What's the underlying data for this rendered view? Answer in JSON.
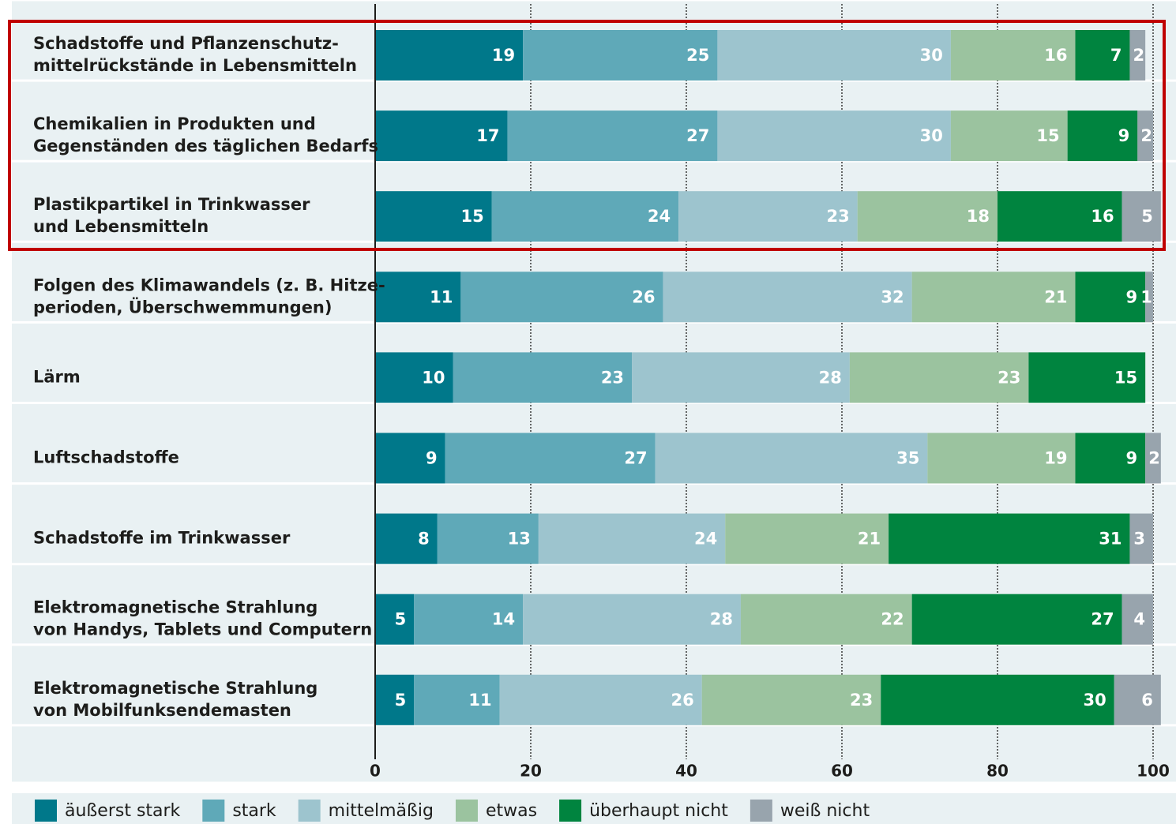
{
  "chart_data": {
    "type": "stacked-bar-horizontal",
    "categories": [
      [
        "Schadstoffe und Pflanzenschutz-",
        "mittelrückstände in Lebensmitteln"
      ],
      [
        "Chemikalien in Produkten und",
        "Gegenständen des täglichen Bedarfs"
      ],
      [
        "Plastikpartikel in Trinkwasser",
        "und Lebensmitteln"
      ],
      [
        "Folgen des Klimawandels (z. B. Hitze-",
        "perioden, Überschwemmungen)"
      ],
      [
        "Lärm"
      ],
      [
        "Luftschadstoffe"
      ],
      [
        "Schadstoffe im Trinkwasser"
      ],
      [
        "Elektromagnetische Strahlung",
        "von Handys, Tablets und Computern"
      ],
      [
        "Elektromagnetische Strahlung",
        "von Mobilfunksendemasten"
      ]
    ],
    "series": [
      {
        "name": "äußerst stark",
        "color": "#00788a",
        "values": [
          19,
          17,
          15,
          11,
          10,
          9,
          8,
          5,
          5
        ]
      },
      {
        "name": "stark",
        "color": "#5fa9b8",
        "values": [
          25,
          27,
          24,
          26,
          23,
          27,
          13,
          14,
          11
        ]
      },
      {
        "name": "mittelmäßig",
        "color": "#9dc4ce",
        "values": [
          30,
          30,
          23,
          32,
          28,
          35,
          24,
          28,
          26
        ]
      },
      {
        "name": "etwas",
        "color": "#9bc39f",
        "values": [
          16,
          15,
          18,
          21,
          23,
          19,
          21,
          22,
          23
        ]
      },
      {
        "name": "überhaupt nicht",
        "color": "#00843f",
        "values": [
          7,
          9,
          16,
          9,
          15,
          9,
          31,
          27,
          30
        ]
      },
      {
        "name": "weiß nicht",
        "color": "#98a4ad",
        "values": [
          2,
          2,
          5,
          1,
          null,
          2,
          3,
          4,
          6
        ]
      }
    ],
    "xlim": [
      0,
      100
    ],
    "xticks": [
      0,
      20,
      40,
      60,
      80,
      100
    ],
    "grid": true
  }
}
